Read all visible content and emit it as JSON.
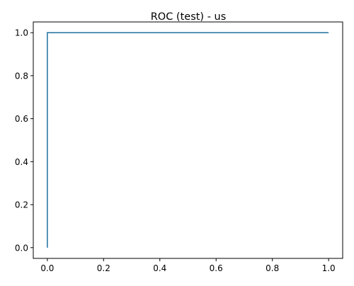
{
  "chart_data": {
    "type": "line",
    "title": "ROC (test) - us",
    "xlabel": "",
    "ylabel": "",
    "xlim": [
      -0.05,
      1.05
    ],
    "ylim": [
      -0.05,
      1.05
    ],
    "x_ticks": [
      0.0,
      0.2,
      0.4,
      0.6,
      0.8,
      1.0
    ],
    "x_tick_labels": [
      "0.0",
      "0.2",
      "0.4",
      "0.6",
      "0.8",
      "1.0"
    ],
    "y_ticks": [
      0.0,
      0.2,
      0.4,
      0.6,
      0.8,
      1.0
    ],
    "y_tick_labels": [
      "0.0",
      "0.2",
      "0.4",
      "0.6",
      "0.8",
      "1.0"
    ],
    "grid": false,
    "legend": "none",
    "series": [
      {
        "color": "#1f6f9f",
        "x": [
          0.0,
          0.0,
          1.0
        ],
        "y": [
          0.0,
          1.0,
          1.0
        ]
      }
    ]
  }
}
